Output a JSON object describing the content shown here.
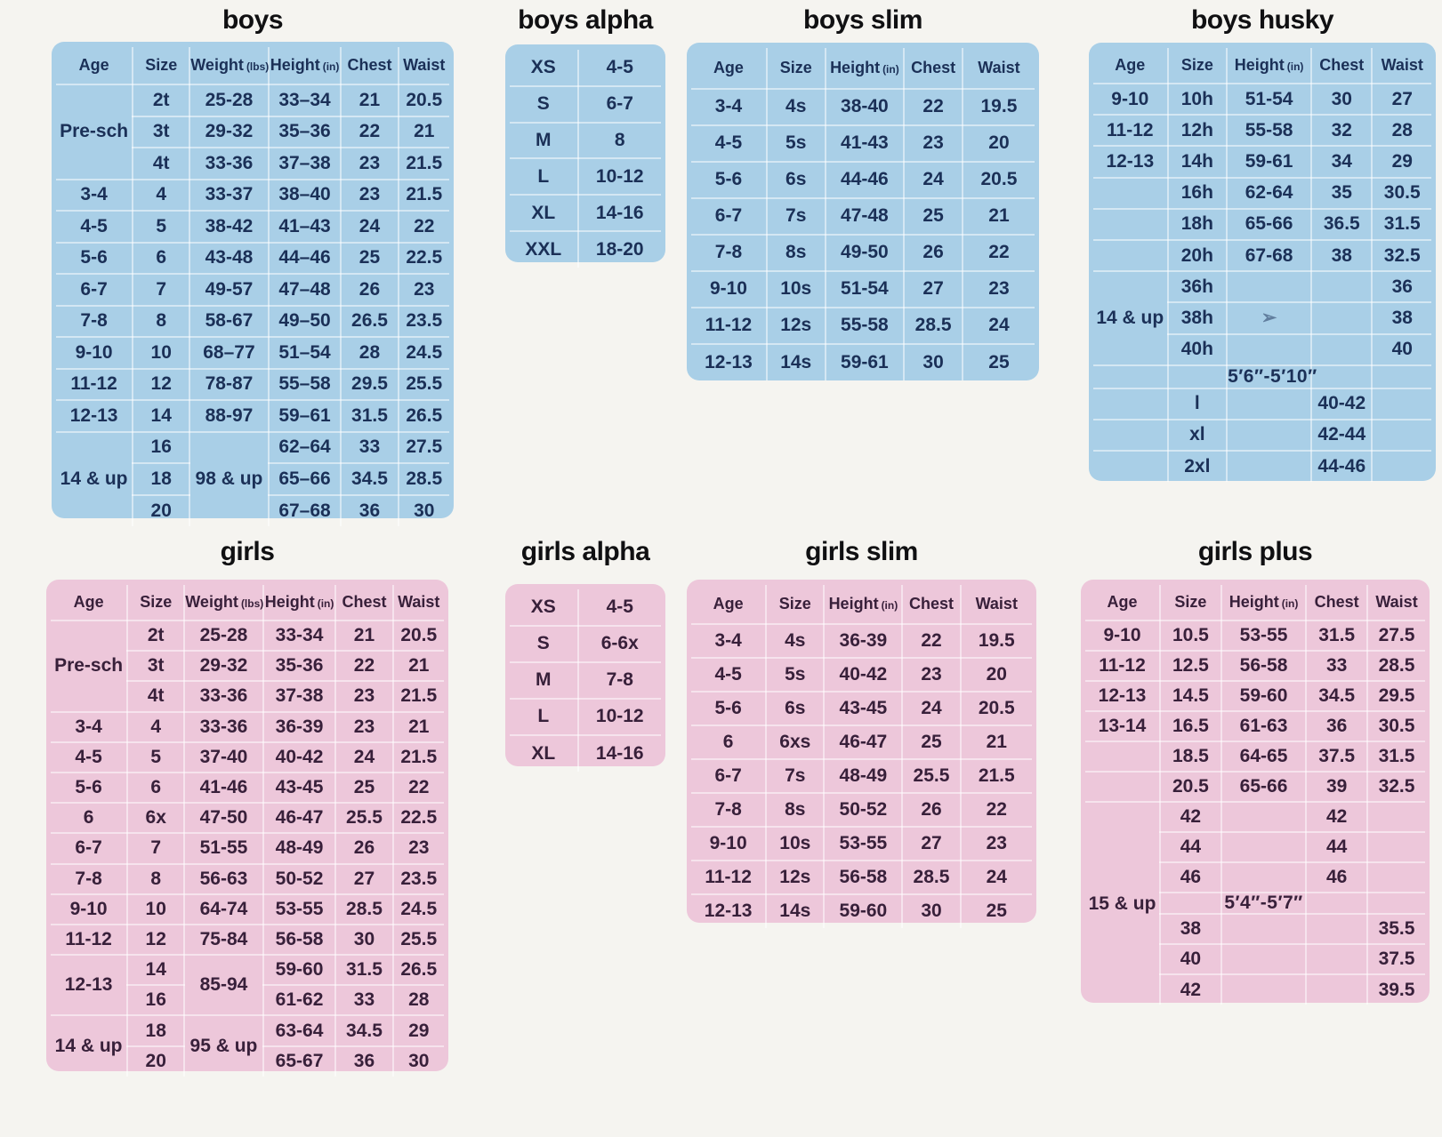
{
  "colors": {
    "page_bg": "#f5f4f0",
    "boys_bg": "#a9cfe7",
    "boys_text": "#1b3057",
    "girls_bg": "#edc7da",
    "girls_text": "#38203a",
    "title_text": "#101012",
    "grid_line": "rgba(255,255,255,0.5)"
  },
  "tables": [
    {
      "id": "boys",
      "title": "boys",
      "header": [
        {
          "label": "Age"
        },
        {
          "label": "Size"
        },
        {
          "label": "Weight",
          "unit": "(lbs)"
        },
        {
          "label": "Height",
          "unit": "(in)"
        },
        {
          "label": "Chest"
        },
        {
          "label": "Waist"
        }
      ],
      "rows": [
        [
          {
            "t": "Pre-sch",
            "rs": 3
          },
          "2t",
          "25-28",
          "33–34",
          "21",
          "20.5"
        ],
        [
          "3t",
          "29-32",
          "35–36",
          "22",
          "21"
        ],
        [
          "4t",
          "33-36",
          "37–38",
          "23",
          "21.5"
        ],
        [
          "3-4",
          "4",
          "33-37",
          "38–40",
          "23",
          "21.5"
        ],
        [
          "4-5",
          "5",
          "38-42",
          "41–43",
          "24",
          "22"
        ],
        [
          "5-6",
          "6",
          "43-48",
          "44–46",
          "25",
          "22.5"
        ],
        [
          "6-7",
          "7",
          "49-57",
          "47–48",
          "26",
          "23"
        ],
        [
          "7-8",
          "8",
          "58-67",
          "49–50",
          "26.5",
          "23.5"
        ],
        [
          "9-10",
          "10",
          "68–77",
          "51–54",
          "28",
          "24.5"
        ],
        [
          "11-12",
          "12",
          "78-87",
          "55–58",
          "29.5",
          "25.5"
        ],
        [
          "12-13",
          "14",
          "88-97",
          "59–61",
          "31.5",
          "26.5"
        ],
        [
          {
            "t": "14 & up",
            "rs": 3
          },
          "16",
          {
            "t": "98 & up",
            "rs": 3
          },
          "62–64",
          "33",
          "27.5"
        ],
        [
          "18",
          "65–66",
          "34.5",
          "28.5"
        ],
        [
          "20",
          "67–68",
          "36",
          "30"
        ]
      ]
    },
    {
      "id": "boys-alpha",
      "title": "boys alpha",
      "rows": [
        [
          "XS",
          "4-5"
        ],
        [
          "S",
          "6-7"
        ],
        [
          "M",
          "8"
        ],
        [
          "L",
          "10-12"
        ],
        [
          "XL",
          "14-16"
        ],
        [
          "XXL",
          "18-20"
        ]
      ]
    },
    {
      "id": "boys-slim",
      "title": "boys slim",
      "header": [
        {
          "label": "Age"
        },
        {
          "label": "Size"
        },
        {
          "label": "Height",
          "unit": "(in)"
        },
        {
          "label": "Chest"
        },
        {
          "label": "Waist"
        }
      ],
      "rows": [
        [
          "3-4",
          "4s",
          "38-40",
          "22",
          "19.5"
        ],
        [
          "4-5",
          "5s",
          "41-43",
          "23",
          "20"
        ],
        [
          "5-6",
          "6s",
          "44-46",
          "24",
          "20.5"
        ],
        [
          "6-7",
          "7s",
          "47-48",
          "25",
          "21"
        ],
        [
          "7-8",
          "8s",
          "49-50",
          "26",
          "22"
        ],
        [
          "9-10",
          "10s",
          "51-54",
          "27",
          "23"
        ],
        [
          "11-12",
          "12s",
          "55-58",
          "28.5",
          "24"
        ],
        [
          "12-13",
          "14s",
          "59-61",
          "30",
          "25"
        ]
      ]
    },
    {
      "id": "boys-husky",
      "title": "boys husky",
      "header": [
        {
          "label": "Age"
        },
        {
          "label": "Size"
        },
        {
          "label": "Height",
          "unit": "(in)"
        },
        {
          "label": "Chest"
        },
        {
          "label": "Waist"
        }
      ],
      "rows": [
        [
          "9-10",
          "10h",
          "51-54",
          "30",
          "27"
        ],
        [
          "11-12",
          "12h",
          "55-58",
          "32",
          "28"
        ],
        [
          "12-13",
          "14h",
          "59-61",
          "34",
          "29"
        ],
        [
          "",
          "16h",
          "62-64",
          "35",
          "30.5"
        ],
        [
          "",
          "18h",
          "65-66",
          "36.5",
          "31.5"
        ],
        [
          "",
          "20h",
          "67-68",
          "38",
          "32.5"
        ],
        [
          {
            "t": "14 & up",
            "rs": 3
          },
          "36h",
          "",
          "",
          "36"
        ],
        [
          "38h",
          {
            "t": "➢",
            "cls": "artifact"
          },
          "",
          "38"
        ],
        [
          "40h",
          "",
          "",
          "40"
        ],
        {
          "lr": true,
          "cells": [
            "",
            "",
            {
              "t": "5′6″-5′10″",
              "cls": "range"
            },
            "",
            ""
          ]
        },
        [
          "",
          "l",
          "",
          "40-42",
          ""
        ],
        [
          "",
          "xl",
          "",
          "42-44",
          ""
        ],
        [
          "",
          "2xl",
          "",
          "44-46",
          ""
        ]
      ]
    },
    {
      "id": "girls",
      "title": "girls",
      "header": [
        {
          "label": "Age"
        },
        {
          "label": "Size"
        },
        {
          "label": "Weight",
          "unit": "(lbs)"
        },
        {
          "label": "Height",
          "unit": "(in)"
        },
        {
          "label": "Chest"
        },
        {
          "label": "Waist"
        }
      ],
      "rows": [
        [
          {
            "t": "Pre-sch",
            "rs": 3
          },
          "2t",
          "25-28",
          "33-34",
          "21",
          "20.5"
        ],
        [
          "3t",
          "29-32",
          "35-36",
          "22",
          "21"
        ],
        [
          "4t",
          "33-36",
          "37-38",
          "23",
          "21.5"
        ],
        [
          "3-4",
          "4",
          "33-36",
          "36-39",
          "23",
          "21"
        ],
        [
          "4-5",
          "5",
          "37-40",
          "40-42",
          "24",
          "21.5"
        ],
        [
          "5-6",
          "6",
          "41-46",
          "43-45",
          "25",
          "22"
        ],
        [
          "6",
          "6x",
          "47-50",
          "46-47",
          "25.5",
          "22.5"
        ],
        [
          "6-7",
          "7",
          "51-55",
          "48-49",
          "26",
          "23"
        ],
        [
          "7-8",
          "8",
          "56-63",
          "50-52",
          "27",
          "23.5"
        ],
        [
          "9-10",
          "10",
          "64-74",
          "53-55",
          "28.5",
          "24.5"
        ],
        [
          "11-12",
          "12",
          "75-84",
          "56-58",
          "30",
          "25.5"
        ],
        [
          {
            "t": "12-13",
            "rs": 2
          },
          "14",
          {
            "t": "85-94",
            "rs": 2
          },
          "59-60",
          "31.5",
          "26.5"
        ],
        [
          "16",
          "61-62",
          "33",
          "28"
        ],
        [
          {
            "t": "14 & up",
            "rs": 2
          },
          "18",
          {
            "t": "95 & up",
            "rs": 2
          },
          "63-64",
          "34.5",
          "29"
        ],
        [
          "20",
          "65-67",
          "36",
          "30"
        ]
      ]
    },
    {
      "id": "girls-alpha",
      "title": "girls alpha",
      "rows": [
        [
          "XS",
          "4-5"
        ],
        [
          "S",
          "6-6x"
        ],
        [
          "M",
          "7-8"
        ],
        [
          "L",
          "10-12"
        ],
        [
          "XL",
          "14-16"
        ]
      ]
    },
    {
      "id": "girls-slim",
      "title": "girls slim",
      "header": [
        {
          "label": "Age"
        },
        {
          "label": "Size"
        },
        {
          "label": "Height",
          "unit": "(in)"
        },
        {
          "label": "Chest"
        },
        {
          "label": "Waist"
        }
      ],
      "rows": [
        [
          "3-4",
          "4s",
          "36-39",
          "22",
          "19.5"
        ],
        [
          "4-5",
          "5s",
          "40-42",
          "23",
          "20"
        ],
        [
          "5-6",
          "6s",
          "43-45",
          "24",
          "20.5"
        ],
        [
          "6",
          "6xs",
          "46-47",
          "25",
          "21"
        ],
        [
          "6-7",
          "7s",
          "48-49",
          "25.5",
          "21.5"
        ],
        [
          "7-8",
          "8s",
          "50-52",
          "26",
          "22"
        ],
        [
          "9-10",
          "10s",
          "53-55",
          "27",
          "23"
        ],
        [
          "11-12",
          "12s",
          "56-58",
          "28.5",
          "24"
        ],
        [
          "12-13",
          "14s",
          "59-60",
          "30",
          "25"
        ]
      ]
    },
    {
      "id": "girls-plus",
      "title": "girls plus",
      "header": [
        {
          "label": "Age"
        },
        {
          "label": "Size"
        },
        {
          "label": "Height",
          "unit": "(in)"
        },
        {
          "label": "Chest"
        },
        {
          "label": "Waist"
        }
      ],
      "rows": [
        [
          "9-10",
          "10.5",
          "53-55",
          "31.5",
          "27.5"
        ],
        [
          "11-12",
          "12.5",
          "56-58",
          "33",
          "28.5"
        ],
        [
          "12-13",
          "14.5",
          "59-60",
          "34.5",
          "29.5"
        ],
        [
          "13-14",
          "16.5",
          "61-63",
          "36",
          "30.5"
        ],
        [
          "",
          "18.5",
          "64-65",
          "37.5",
          "31.5"
        ],
        [
          "",
          "20.5",
          "65-66",
          "39",
          "32.5"
        ],
        [
          {
            "t": "15 & up",
            "rs": 7
          },
          "42",
          "",
          "42",
          ""
        ],
        [
          "44",
          "",
          "44",
          ""
        ],
        [
          "46",
          "",
          "46",
          ""
        ],
        {
          "lr": true,
          "cells": [
            "",
            {
              "t": "5′4″-5′7″",
              "cls": "range"
            },
            "",
            ""
          ]
        },
        [
          "38",
          "",
          "",
          "35.5"
        ],
        [
          "40",
          "",
          "",
          "37.5"
        ],
        [
          "42",
          "",
          "",
          "39.5"
        ]
      ]
    }
  ]
}
